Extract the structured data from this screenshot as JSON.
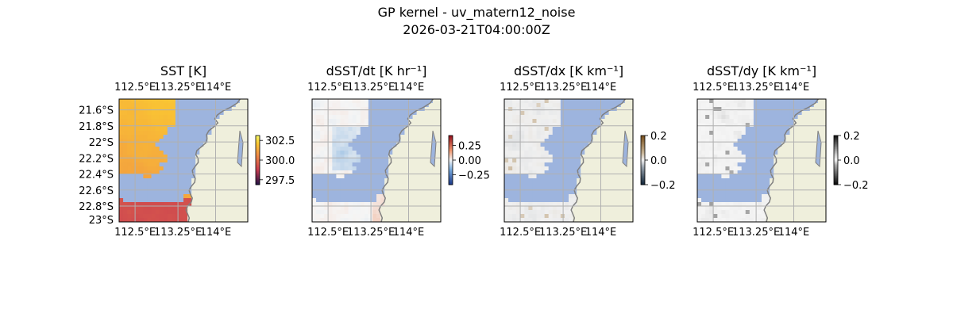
{
  "figure": {
    "title_line1": "GP kernel - uv_matern12_noise",
    "title_line2": "2026-03-21T04:00:00Z"
  },
  "colors": {
    "ocean_mask": "#9db4de",
    "land": "#efefdc",
    "coast": "#808080",
    "grid": "#b0b0b0"
  },
  "chart_data": [
    {
      "type": "heatmap",
      "title": "SST [K]",
      "x_ticks": [
        "112.5°E",
        "113.25°E",
        "114°E"
      ],
      "y_ticks": [
        "21.6°S",
        "21.8°S",
        "22°S",
        "22.2°S",
        "22.4°S",
        "22.6°S",
        "22.8°S",
        "23°S"
      ],
      "lon_range": [
        112.5,
        114.0
      ],
      "lat_range": [
        -23.0,
        -21.5
      ],
      "colormap": "YlOrRd-like (thermal)",
      "colorbar": {
        "ticks": [
          "302.5",
          "300.0",
          "297.5"
        ],
        "range": [
          297,
          303
        ]
      },
      "grid": true,
      "show_y_labels": true
    },
    {
      "type": "heatmap",
      "title": "dSST/dt [K hr⁻¹]",
      "x_ticks": [
        "112.5°E",
        "113.25°E",
        "114°E"
      ],
      "lon_range": [
        112.5,
        114.0
      ],
      "lat_range": [
        -23.0,
        -21.5
      ],
      "colormap": "RdBu_r (diverging)",
      "colorbar": {
        "ticks": [
          "0.25",
          "0.00",
          "−0.25"
        ],
        "range": [
          -0.4,
          0.4
        ]
      },
      "grid": true,
      "show_y_labels": false
    },
    {
      "type": "heatmap",
      "title": "dSST/dx [K km⁻¹]",
      "x_ticks": [
        "112.5°E",
        "113.25°E",
        "114°E"
      ],
      "lon_range": [
        112.5,
        114.0
      ],
      "lat_range": [
        -23.0,
        -21.5
      ],
      "colormap": "BrBG-like (diverging)",
      "colorbar": {
        "ticks": [
          "0.2",
          "0.0",
          "−0.2"
        ],
        "range": [
          -0.2,
          0.2
        ]
      },
      "grid": true,
      "show_y_labels": false
    },
    {
      "type": "heatmap",
      "title": "dSST/dy [K km⁻¹]",
      "x_ticks": [
        "112.5°E",
        "113.25°E",
        "114°E"
      ],
      "lon_range": [
        112.5,
        114.0
      ],
      "lat_range": [
        -23.0,
        -21.5
      ],
      "colormap": "gray diverging",
      "colorbar": {
        "ticks": [
          "0.2",
          "0.0",
          "−0.2"
        ],
        "range": [
          -0.2,
          0.2
        ]
      },
      "grid": true,
      "show_y_labels": false
    }
  ]
}
